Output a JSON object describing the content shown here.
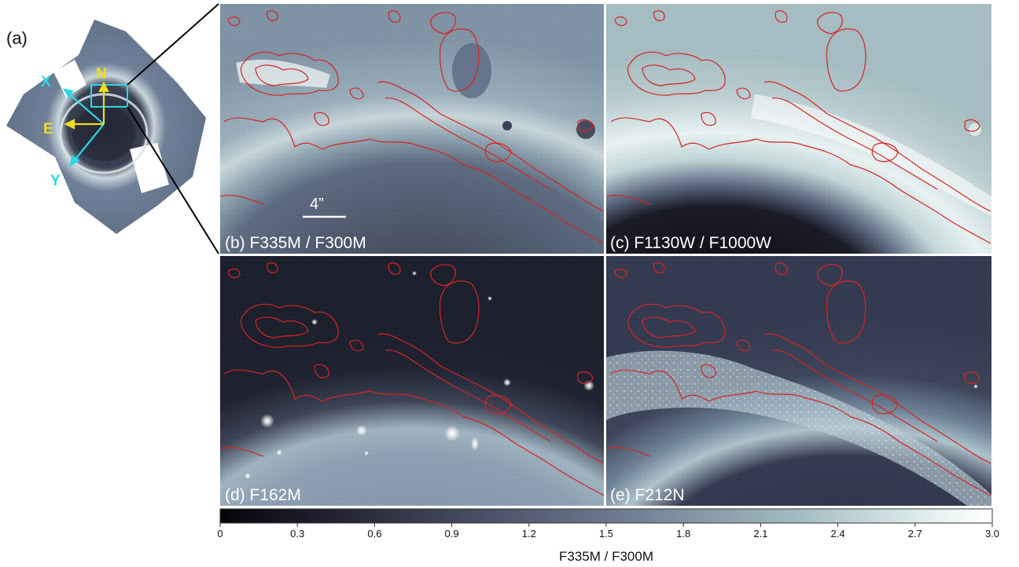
{
  "figure": {
    "overview_label": "(a)",
    "compass": {
      "north": "N",
      "east": "E",
      "x_axis": "X",
      "y_axis": "Y"
    },
    "scale_bar_label": "4”",
    "panels": [
      {
        "id": "b",
        "label": "(b) F335M / F300M"
      },
      {
        "id": "c",
        "label": "(c) F1130W / F1000W"
      },
      {
        "id": "d",
        "label": "(d) F162M"
      },
      {
        "id": "e",
        "label": "(e) F212N"
      }
    ],
    "colorbar": {
      "label": "F335M / F300M",
      "ticks": [
        "0",
        "0.3",
        "0.6",
        "0.9",
        "1.2",
        "1.5",
        "1.8",
        "2.1",
        "2.4",
        "2.7",
        "3.0"
      ],
      "min": 0,
      "max": 3.0
    },
    "colors": {
      "contour": "#d42424",
      "cyan": "#2fd6e6",
      "yellow": "#f0dc1e",
      "colormap_dark": "#0b0b12",
      "colormap_mid": "#687a90",
      "colormap_light": "#ffffff"
    }
  }
}
